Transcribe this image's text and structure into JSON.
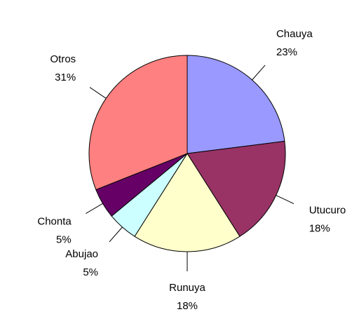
{
  "chart_data": {
    "type": "pie",
    "categories": [
      "Chauya",
      "Utucuro",
      "Runuya",
      "Abujao",
      "Chonta",
      "Otros"
    ],
    "values": [
      23,
      18,
      18,
      5,
      5,
      31
    ],
    "value_labels": [
      "23%",
      "18%",
      "18%",
      "5%",
      "5%",
      "31%"
    ],
    "colors": [
      "#9999ff",
      "#993366",
      "#ffffcc",
      "#ccffff",
      "#660066",
      "#ff8080"
    ]
  }
}
